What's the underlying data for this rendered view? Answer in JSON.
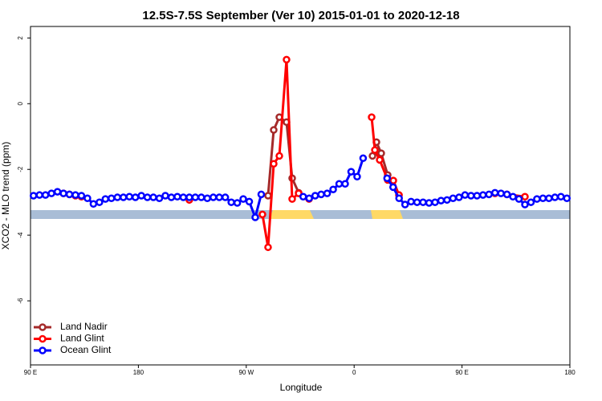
{
  "chart_data": {
    "type": "line",
    "title": "12.5S-7.5S September (Ver 10)   2015-01-01 to 2020-12-18",
    "xlabel": "Longitude",
    "ylabel": "XCO2 - MLO trend (ppm)",
    "xlim": [
      90,
      540
    ],
    "ylim": [
      -7.95,
      2.35
    ],
    "xticks": [
      {
        "value": 90,
        "label": "90 E"
      },
      180,
      {
        "value": 270,
        "label": "90 W"
      },
      {
        "value": 360,
        "label": "0"
      },
      {
        "value": 450,
        "label": "90 E"
      },
      {
        "value": 540,
        "label": "180"
      }
    ],
    "yticks": [
      -6,
      -4,
      -2,
      0,
      2
    ],
    "legend": "bottomleft",
    "series": [
      {
        "name": "Land Nadir",
        "color": "#a52a2a",
        "x": [
          288.2,
          292.9,
          297.6,
          303.6,
          308.3,
          313.7,
          340,
          375.3,
          378.6,
          382.6,
          388,
          397.4
        ],
        "values": [
          -2.8,
          -0.8,
          -0.41,
          -0.56,
          -2.27,
          -2.71,
          null,
          -1.59,
          -1.17,
          -1.51,
          -2.17,
          -2.78
        ]
      },
      {
        "name": "Land Glint",
        "color": "#ff0000",
        "x": [
          117.5,
          122.5,
          127.5,
          132.5,
          150,
          222.5,
          250,
          283.5,
          288.2,
          292.9,
          297.6,
          303.6,
          308.3,
          313.7,
          322.4,
          350,
          374.6,
          377.3,
          381.3,
          388,
          392.7,
          397.4,
          420,
          477.5,
          487.5,
          502.5
        ],
        "values": [
          -2.73,
          -2.76,
          -2.8,
          -2.83,
          null,
          -2.93,
          null,
          -3.37,
          -4.37,
          -1.83,
          -1.59,
          1.34,
          -2.9,
          -2.73,
          -2.9,
          null,
          -0.41,
          -1.41,
          -1.71,
          -2.32,
          -2.34,
          -2.78,
          null,
          -2.73,
          -2.76,
          -2.83
        ]
      },
      {
        "name": "Ocean Glint",
        "color": "#0000ff",
        "x": [
          92.5,
          97.5,
          102.5,
          107.5,
          112.5,
          117.5,
          122.5,
          127.5,
          132.5,
          137.5,
          142.5,
          147.5,
          152.5,
          157.5,
          162.5,
          167.5,
          172.5,
          177.5,
          182.5,
          187.5,
          192.5,
          197.5,
          202.5,
          207.5,
          212.5,
          217.5,
          222.5,
          227.5,
          232.5,
          237.5,
          242.5,
          247.5,
          252.5,
          257.5,
          262.5,
          267.5,
          272.5,
          277.5,
          282.5,
          300,
          317.5,
          322.5,
          327.5,
          332.5,
          337.5,
          342.5,
          347.5,
          352.5,
          357.5,
          362.5,
          367.5,
          372.5,
          387.5,
          392.5,
          397.5,
          402.5,
          407.5,
          412.5,
          417.5,
          422.5,
          427.5,
          432.5,
          437.5,
          442.5,
          447.5,
          452.5,
          457.5,
          462.5,
          467.5,
          472.5,
          477.5,
          482.5,
          487.5,
          492.5,
          497.5,
          502.5,
          507.5,
          512.5,
          517.5,
          522.5,
          527.5,
          532.5,
          537.5
        ],
        "values": [
          -2.8,
          -2.78,
          -2.78,
          -2.73,
          -2.68,
          -2.73,
          -2.76,
          -2.78,
          -2.8,
          -2.88,
          -3.05,
          -3.0,
          -2.9,
          -2.88,
          -2.85,
          -2.85,
          -2.83,
          -2.85,
          -2.8,
          -2.85,
          -2.85,
          -2.88,
          -2.8,
          -2.85,
          -2.83,
          -2.85,
          -2.85,
          -2.85,
          -2.85,
          -2.88,
          -2.85,
          -2.85,
          -2.85,
          -3.0,
          -3.02,
          -2.9,
          -2.98,
          -3.46,
          -2.76,
          null,
          -2.83,
          -2.88,
          -2.8,
          -2.76,
          -2.73,
          -2.61,
          -2.44,
          -2.44,
          -2.07,
          -2.22,
          -1.66,
          null,
          -2.27,
          -2.54,
          -2.88,
          -3.07,
          -2.98,
          -3.0,
          -3.0,
          -3.02,
          -3.0,
          -2.95,
          -2.93,
          -2.88,
          -2.85,
          -2.78,
          -2.8,
          -2.8,
          -2.78,
          -2.76,
          -2.71,
          -2.73,
          -2.76,
          -2.83,
          -2.9,
          -3.07,
          -3.0,
          -2.9,
          -2.88,
          -2.88,
          -2.85,
          -2.83,
          -2.88
        ]
      }
    ]
  }
}
